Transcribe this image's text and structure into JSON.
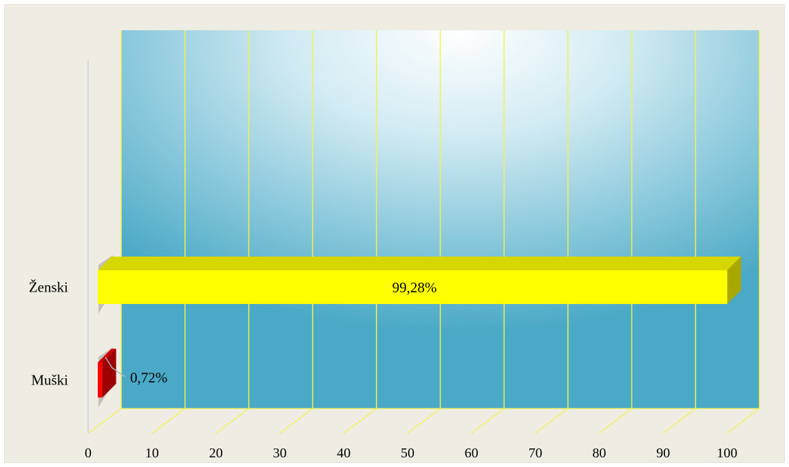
{
  "chart_data": {
    "type": "bar",
    "orientation": "horizontal",
    "three_d": true,
    "categories": [
      "Ženski",
      "Muški"
    ],
    "values": [
      99.28,
      0.72
    ],
    "data_labels": [
      "99,28%",
      "0,72%"
    ],
    "xticks": [
      "0",
      "10",
      "20",
      "30",
      "40",
      "50",
      "60",
      "70",
      "80",
      "90",
      "100"
    ],
    "xlim": [
      0,
      100
    ],
    "grid": true,
    "title": "",
    "xlabel": "",
    "ylabel": ""
  },
  "colors": {
    "frame_background": "#efece3",
    "plot_gradient_center": "#ffffff",
    "plot_gradient_edge": "#4aa9c6",
    "gridline": "#f3f34a",
    "bar_zenski_front": "#ffff00",
    "bar_zenski_top": "#d6d600",
    "bar_zenski_side": "#a8a800",
    "bar_muski_front": "#ff0000",
    "bar_muski_top": "#cc0000",
    "bar_muski_side": "#9c0000"
  }
}
